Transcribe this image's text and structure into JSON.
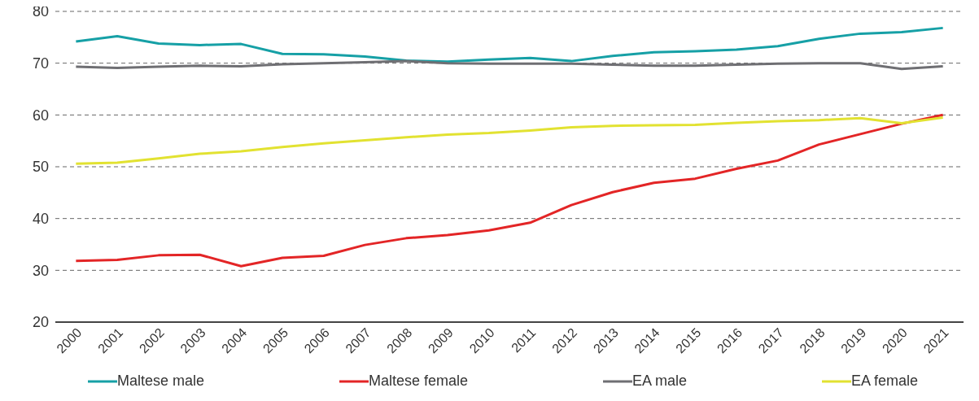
{
  "chart_data": {
    "type": "line",
    "categories": [
      "2000",
      "2001",
      "2002",
      "2003",
      "2004",
      "2005",
      "2006",
      "2007",
      "2008",
      "2009",
      "2010",
      "2011",
      "2012",
      "2013",
      "2014",
      "2015",
      "2016",
      "2017",
      "2018",
      "2019",
      "2020",
      "2021"
    ],
    "series": [
      {
        "name": "Maltese male",
        "color": "#16a0a6",
        "values": [
          74.2,
          75.2,
          73.8,
          73.5,
          73.7,
          71.8,
          71.7,
          71.3,
          70.5,
          70.3,
          70.7,
          71.0,
          70.4,
          71.4,
          72.1,
          72.3,
          72.6,
          73.3,
          74.7,
          75.7,
          76.0,
          76.8
        ]
      },
      {
        "name": "Maltese female",
        "color": "#e32526",
        "values": [
          31.8,
          32.0,
          32.9,
          33.0,
          30.8,
          32.4,
          32.8,
          34.9,
          36.2,
          36.8,
          37.7,
          39.2,
          42.6,
          45.1,
          46.9,
          47.7,
          49.6,
          51.2,
          54.3,
          56.3,
          58.3,
          60.0
        ]
      },
      {
        "name": "EA male",
        "color": "#6f6f73",
        "values": [
          69.3,
          69.1,
          69.3,
          69.5,
          69.4,
          69.8,
          70.0,
          70.2,
          70.4,
          70.0,
          69.9,
          69.9,
          69.9,
          69.7,
          69.5,
          69.5,
          69.7,
          69.9,
          70.0,
          70.0,
          68.9,
          69.4
        ]
      },
      {
        "name": "EA female",
        "color": "#e2e231",
        "values": [
          50.6,
          50.8,
          51.6,
          52.5,
          53.0,
          53.8,
          54.5,
          55.1,
          55.7,
          56.2,
          56.5,
          57.0,
          57.6,
          57.9,
          58.0,
          58.1,
          58.5,
          58.8,
          59.0,
          59.4,
          58.4,
          59.5
        ]
      }
    ],
    "ylim": [
      20,
      80
    ],
    "yticks": [
      20,
      30,
      40,
      50,
      60,
      70,
      80
    ],
    "grid": "y",
    "legend": "bottom",
    "marker": "none",
    "line_style": "solid"
  }
}
